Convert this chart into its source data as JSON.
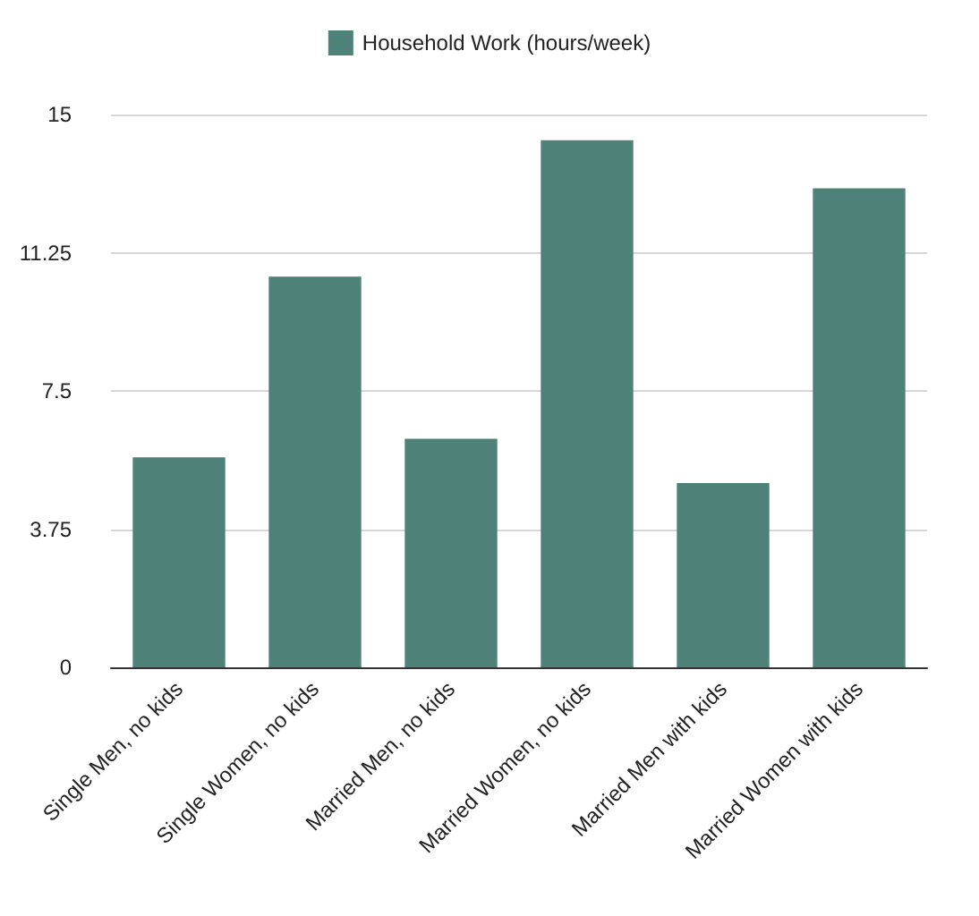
{
  "chart_data": {
    "type": "bar",
    "categories": [
      "Single Men, no kids",
      "Single Women, no kids",
      "Married Men, no kids",
      "Married Women, no kids",
      "Married Men with kids",
      "Married Women with kids"
    ],
    "series": [
      {
        "name": "Household Work (hours/week)",
        "color": "#4e8177",
        "values": [
          5.7,
          10.6,
          6.2,
          14.3,
          5.0,
          13.0
        ]
      }
    ],
    "ylim": [
      0,
      15
    ],
    "yticks": [
      0,
      3.75,
      7.5,
      11.25,
      15
    ],
    "grid": "y",
    "legend": "top"
  }
}
